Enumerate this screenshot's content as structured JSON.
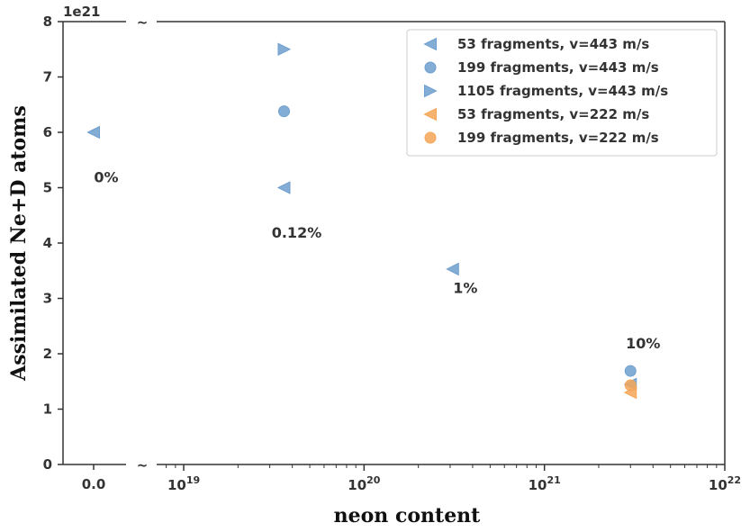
{
  "chart_data": {
    "type": "scatter",
    "title": "",
    "xlabel": "neon content",
    "ylabel": "Assimilated Ne+D atoms",
    "y_multiplier_label": "1e21",
    "x_axis": {
      "scale": "log",
      "broken": true,
      "linear_segment_ticks": [
        {
          "value": 0,
          "label": "0.0"
        }
      ],
      "log_ticks": [
        {
          "value": 1e+19,
          "base": "10",
          "exp": "19"
        },
        {
          "value": 1e+20,
          "base": "10",
          "exp": "20"
        },
        {
          "value": 1e+21,
          "base": "10",
          "exp": "21"
        },
        {
          "value": 1e+22,
          "base": "10",
          "exp": "22"
        }
      ]
    },
    "ylim": [
      0,
      8
    ],
    "y_ticks": [
      0,
      1,
      2,
      3,
      4,
      5,
      6,
      7,
      8
    ],
    "legend_position": "top-right",
    "series": [
      {
        "name": "53 fragments, v=443 m/s",
        "marker": "triangle-left",
        "color": "#6f9fcf",
        "points": [
          {
            "x": 0,
            "y": 6.0
          },
          {
            "x": 3.6e+19,
            "y": 5.0
          },
          {
            "x": 3.1e+20,
            "y": 3.53
          },
          {
            "x": 3e+21,
            "y": 1.45
          }
        ]
      },
      {
        "name": "199 fragments, v=443 m/s",
        "marker": "circle",
        "color": "#6f9fcf",
        "points": [
          {
            "x": 3.6e+19,
            "y": 6.38
          },
          {
            "x": 3e+21,
            "y": 1.69
          }
        ]
      },
      {
        "name": "1105 fragments, v=443 m/s",
        "marker": "triangle-right",
        "color": "#6f9fcf",
        "points": [
          {
            "x": 3.6e+19,
            "y": 7.5
          }
        ]
      },
      {
        "name": "53 fragments, v=222 m/s",
        "marker": "triangle-left",
        "color": "#f5a657",
        "points": [
          {
            "x": 3e+21,
            "y": 1.3
          }
        ]
      },
      {
        "name": "199 fragments, v=222 m/s",
        "marker": "circle",
        "color": "#f5a657",
        "points": [
          {
            "x": 3e+21,
            "y": 1.43
          }
        ]
      }
    ],
    "annotations": [
      {
        "text": "0%",
        "x": 0,
        "y": 5.1
      },
      {
        "text": "0.12%",
        "x": 3.6e+19,
        "y": 4.1
      },
      {
        "text": "1%",
        "x": 3.1e+20,
        "y": 3.1
      },
      {
        "text": "10%",
        "x": 3e+21,
        "y": 2.1
      }
    ],
    "colors": {
      "blue": "#6f9fcf",
      "orange": "#f5a657",
      "axis": "#333333"
    }
  }
}
